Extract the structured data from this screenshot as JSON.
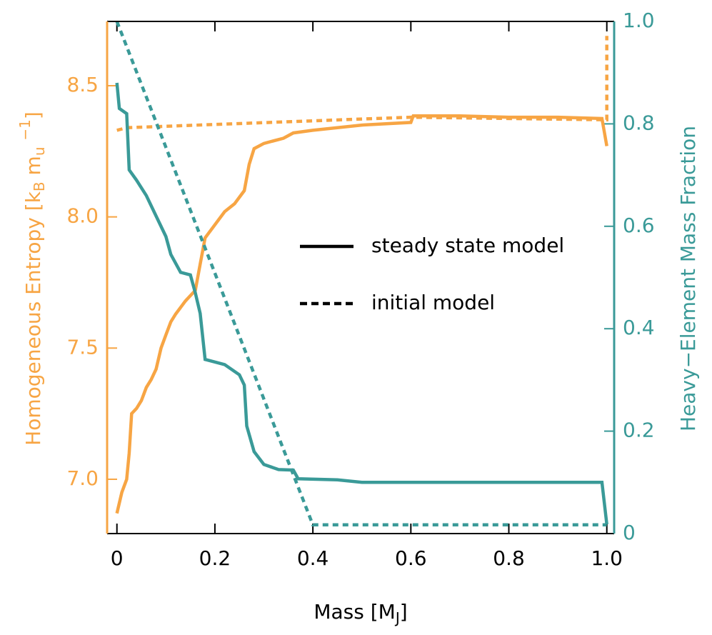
{
  "chart_data": {
    "type": "line",
    "xlabel": [
      "Mass [M",
      "J",
      "]"
    ],
    "ylabel": [
      "Homogeneous Entropy [k",
      "B",
      " m",
      "u",
      " ",
      "−1",
      "]"
    ],
    "y2label": "Heavy−Element Mass Fraction",
    "xlim": [
      -0.02,
      1.015
    ],
    "ylim": [
      6.793,
      8.745
    ],
    "y2lim": [
      0,
      1.0
    ],
    "xticks": [
      0,
      0.2,
      0.4,
      0.6,
      0.8,
      {
        "value": 1.0,
        "label": "1.0"
      }
    ],
    "yticks": [
      {
        "value": 7.0,
        "label": "7.0"
      },
      7.5,
      {
        "value": 8.0,
        "label": "8.0"
      },
      8.5
    ],
    "y2ticks": [
      0,
      0.2,
      0.4,
      0.6,
      0.8,
      {
        "value": 1.0,
        "label": "1.0"
      }
    ],
    "ycolor": "#f7a544",
    "y2color": "#3a9a98",
    "legend": [
      {
        "label": "steady state model",
        "linestyle": "solid"
      },
      {
        "label": "initial model",
        "linestyle": "dashed"
      }
    ],
    "series": [
      {
        "color": "#f7a544",
        "linestyle": "solid",
        "axis": "y",
        "x": [
          0,
          0.01,
          0.02,
          0.025,
          0.03,
          0.04,
          0.05,
          0.06,
          0.07,
          0.08,
          0.09,
          0.1,
          0.11,
          0.12,
          0.14,
          0.16,
          0.17,
          0.18,
          0.2,
          0.22,
          0.24,
          0.26,
          0.27,
          0.28,
          0.3,
          0.34,
          0.36,
          0.4,
          0.5,
          0.6,
          0.605,
          0.7,
          0.8,
          0.9,
          0.99,
          1.0
        ],
        "values": [
          6.87,
          6.95,
          7.0,
          7.1,
          7.25,
          7.27,
          7.3,
          7.35,
          7.38,
          7.42,
          7.5,
          7.55,
          7.6,
          7.63,
          7.68,
          7.72,
          7.82,
          7.92,
          7.97,
          8.02,
          8.05,
          8.1,
          8.2,
          8.26,
          8.28,
          8.3,
          8.32,
          8.33,
          8.35,
          8.36,
          8.385,
          8.385,
          8.38,
          8.38,
          8.375,
          8.27
        ]
      },
      {
        "color": "#f7a544",
        "linestyle": "dashed",
        "axis": "y",
        "x": [
          0,
          0.02,
          0.6,
          1.0,
          1.0
        ],
        "values": [
          8.33,
          8.34,
          8.38,
          8.37,
          8.69
        ]
      },
      {
        "color": "#3a9a98",
        "linestyle": "solid",
        "axis": "y2",
        "x": [
          0,
          0.005,
          0.02,
          0.025,
          0.04,
          0.06,
          0.08,
          0.1,
          0.11,
          0.13,
          0.15,
          0.16,
          0.17,
          0.18,
          0.22,
          0.25,
          0.26,
          0.265,
          0.28,
          0.3,
          0.33,
          0.36,
          0.37,
          0.45,
          0.5,
          0.99,
          1.0
        ],
        "values": [
          0.88,
          0.83,
          0.82,
          0.71,
          0.69,
          0.66,
          0.62,
          0.58,
          0.545,
          0.51,
          0.505,
          0.47,
          0.43,
          0.34,
          0.33,
          0.31,
          0.29,
          0.21,
          0.16,
          0.135,
          0.125,
          0.124,
          0.107,
          0.105,
          0.1,
          0.1,
          0.018
        ]
      },
      {
        "color": "#3a9a98",
        "linestyle": "dashed",
        "axis": "y2",
        "x": [
          0,
          0.4,
          1.0
        ],
        "values": [
          1.0,
          0.017,
          0.017
        ]
      }
    ]
  }
}
